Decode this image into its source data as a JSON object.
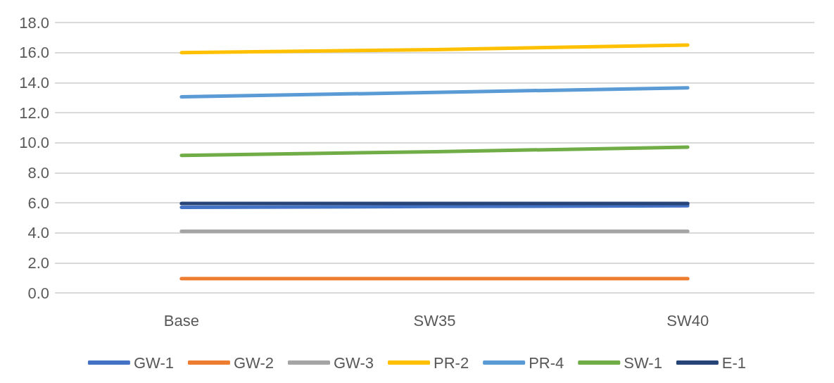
{
  "chart_data": {
    "type": "line",
    "categories": [
      "Base",
      "SW35",
      "SW40"
    ],
    "series": [
      {
        "name": "GW-1",
        "color": "#4472c4",
        "values": [
          5.7,
          5.75,
          5.8
        ]
      },
      {
        "name": "GW-2",
        "color": "#ed7d31",
        "values": [
          0.95,
          0.95,
          0.95
        ]
      },
      {
        "name": "GW-3",
        "color": "#a5a5a5",
        "values": [
          4.1,
          4.1,
          4.1
        ]
      },
      {
        "name": "PR-2",
        "color": "#ffc000",
        "values": [
          16.0,
          16.2,
          16.5
        ]
      },
      {
        "name": "PR-4",
        "color": "#5b9bd5",
        "values": [
          13.05,
          13.35,
          13.65
        ]
      },
      {
        "name": "SW-1",
        "color": "#70ad47",
        "values": [
          9.15,
          9.4,
          9.7
        ]
      },
      {
        "name": "E-1",
        "color": "#264478",
        "values": [
          5.95,
          5.95,
          5.95
        ]
      }
    ],
    "ylim": [
      0,
      18
    ],
    "yticks": [
      {
        "value": 0,
        "label": "0.0"
      },
      {
        "value": 2,
        "label": "2.0"
      },
      {
        "value": 4,
        "label": "4.0"
      },
      {
        "value": 6,
        "label": "6.0"
      },
      {
        "value": 8,
        "label": "8.0"
      },
      {
        "value": 10,
        "label": "10.0"
      },
      {
        "value": 12,
        "label": "12.0"
      },
      {
        "value": 14,
        "label": "14.0"
      },
      {
        "value": 16,
        "label": "16.0"
      },
      {
        "value": 18,
        "label": "18.0"
      }
    ],
    "grid": "y",
    "legend": "bottom",
    "marker": "none",
    "line_style": "solid"
  }
}
